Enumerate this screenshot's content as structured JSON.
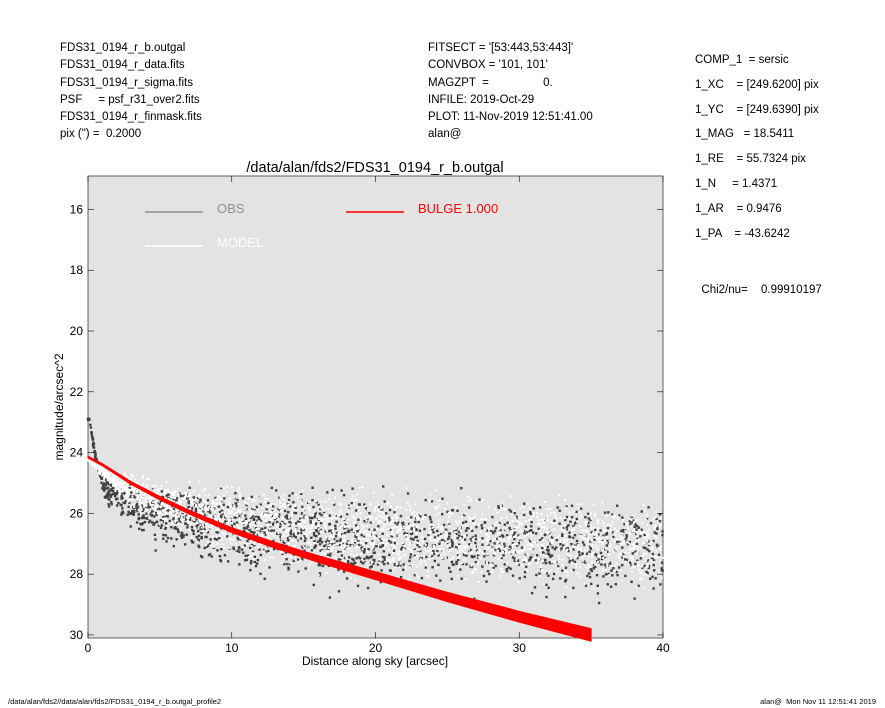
{
  "header_left": [
    "FDS31_0194_r_b.outgal",
    "FDS31_0194_r_data.fits",
    "FDS31_0194_r_sigma.fits",
    "PSF     = psf_r31_over2.fits",
    "FDS31_0194_r_finmask.fits",
    "pix (\") =  0.2000"
  ],
  "header_mid": [
    "FITSECT = '[53:443,53:443]'",
    "CONVBOX = '101, 101'",
    "MAGZPT  =                 0.",
    "INFILE: 2019-Oct-29",
    "PLOT: 11-Nov-2019 12:51:41.00",
    "alan@"
  ],
  "header_right": [
    "COMP_1  = sersic",
    "1_XC    = [249.6200] pix",
    "1_YC    = [249.6390] pix",
    "1_MAG   = 18.5411",
    "1_RE    = 55.7324 pix",
    "1_N     = 1.4371",
    "1_AR    = 0.9476",
    "1_PA    = -43.6242"
  ],
  "chi2": {
    "label": "Chi2/nu=",
    "value": "0.99910197"
  },
  "footer": {
    "left": "/data/alan/fds2//data/alan/fds2/FDS31_0194_r_b.outgal_profile2",
    "right": "alan@  Mon Nov 11 12:51:41 2019"
  },
  "chart_data": {
    "type": "scatter",
    "title": "/data/alan/fds2/FDS31_0194_r_b.outgal",
    "xlabel": "Distance along sky [arcsec]",
    "ylabel": "magnitude/arcsec^2",
    "xlim": [
      0,
      40
    ],
    "ylim": [
      30.1,
      14.9
    ],
    "y_inverted": true,
    "xticks": [
      0,
      10,
      20,
      30,
      40
    ],
    "yticks": [
      16,
      18,
      20,
      22,
      24,
      26,
      28,
      30
    ],
    "grid": false,
    "background": "#e3e3e3",
    "legend": [
      {
        "label": "OBS",
        "color": "#8f8f8f",
        "position": "top-left"
      },
      {
        "label": "MODEL",
        "color": "#ffffff",
        "position": "top-left"
      },
      {
        "label": "BULGE  1.000",
        "color": "#ff0000",
        "position": "top-center"
      }
    ],
    "series": [
      {
        "name": "OBS",
        "kind": "scatter",
        "color": "#404040",
        "x": [
          0.1,
          0.2,
          0.3,
          0.4,
          0.5,
          0.6,
          0.7,
          0.8,
          0.9,
          1.0,
          1.2,
          1.4,
          1.6,
          1.8,
          2.0,
          2.3,
          2.6,
          3.0,
          3.5,
          4.0,
          4.5,
          5.0,
          6.0,
          7.0,
          8.0,
          9.0,
          10.0,
          12.0,
          14.0,
          16.0,
          18.0,
          20.0,
          22.0,
          24.0,
          26.0,
          28.0,
          30.0,
          32.0,
          34.0,
          36.0,
          38.0,
          40.0
        ],
        "y_mean": [
          22.9,
          23.2,
          23.5,
          23.8,
          24.1,
          24.3,
          24.5,
          24.7,
          24.85,
          25.0,
          25.15,
          25.25,
          25.35,
          25.45,
          25.5,
          25.55,
          25.6,
          25.7,
          25.8,
          25.9,
          26.0,
          26.05,
          26.1,
          26.2,
          26.3,
          26.4,
          26.5,
          26.6,
          26.7,
          26.8,
          26.9,
          26.95,
          27.0,
          27.0,
          27.05,
          27.1,
          27.1,
          27.15,
          27.15,
          27.2,
          27.2,
          27.2
        ],
        "y_spread": [
          0.05,
          0.1,
          0.1,
          0.15,
          0.2,
          0.25,
          0.3,
          0.35,
          0.4,
          0.45,
          0.5,
          0.55,
          0.6,
          0.65,
          0.7,
          0.75,
          0.8,
          0.9,
          1.0,
          1.1,
          1.2,
          1.3,
          1.4,
          1.5,
          1.6,
          1.7,
          1.8,
          1.9,
          2.0,
          2.0,
          2.0,
          2.0,
          2.0,
          2.0,
          2.0,
          2.0,
          2.0,
          2.0,
          2.0,
          2.0,
          2.0,
          2.0
        ]
      },
      {
        "name": "MODEL",
        "kind": "scatter",
        "color": "#ffffff",
        "x": [
          0,
          1,
          2,
          3,
          4,
          5,
          6,
          7,
          8,
          10,
          12,
          15,
          20,
          25,
          30,
          35,
          40
        ],
        "y_mean": [
          24.2,
          24.6,
          25.0,
          25.25,
          25.5,
          25.65,
          25.8,
          25.9,
          26.0,
          26.2,
          26.35,
          26.5,
          26.7,
          26.8,
          26.9,
          27.0,
          27.0
        ],
        "y_spread": [
          0.1,
          0.3,
          0.5,
          0.7,
          0.9,
          1.0,
          1.1,
          1.2,
          1.3,
          1.5,
          1.6,
          1.7,
          1.8,
          1.8,
          1.8,
          1.8,
          1.8
        ]
      },
      {
        "name": "BULGE  1.000",
        "kind": "line",
        "color": "#ff0000",
        "x": [
          0,
          1,
          2,
          3,
          5,
          7,
          10,
          13,
          16,
          20,
          25,
          30,
          35
        ],
        "y": [
          24.15,
          24.4,
          24.7,
          25.0,
          25.5,
          25.95,
          26.55,
          27.05,
          27.5,
          28.05,
          28.75,
          29.4,
          30.0
        ]
      }
    ]
  }
}
